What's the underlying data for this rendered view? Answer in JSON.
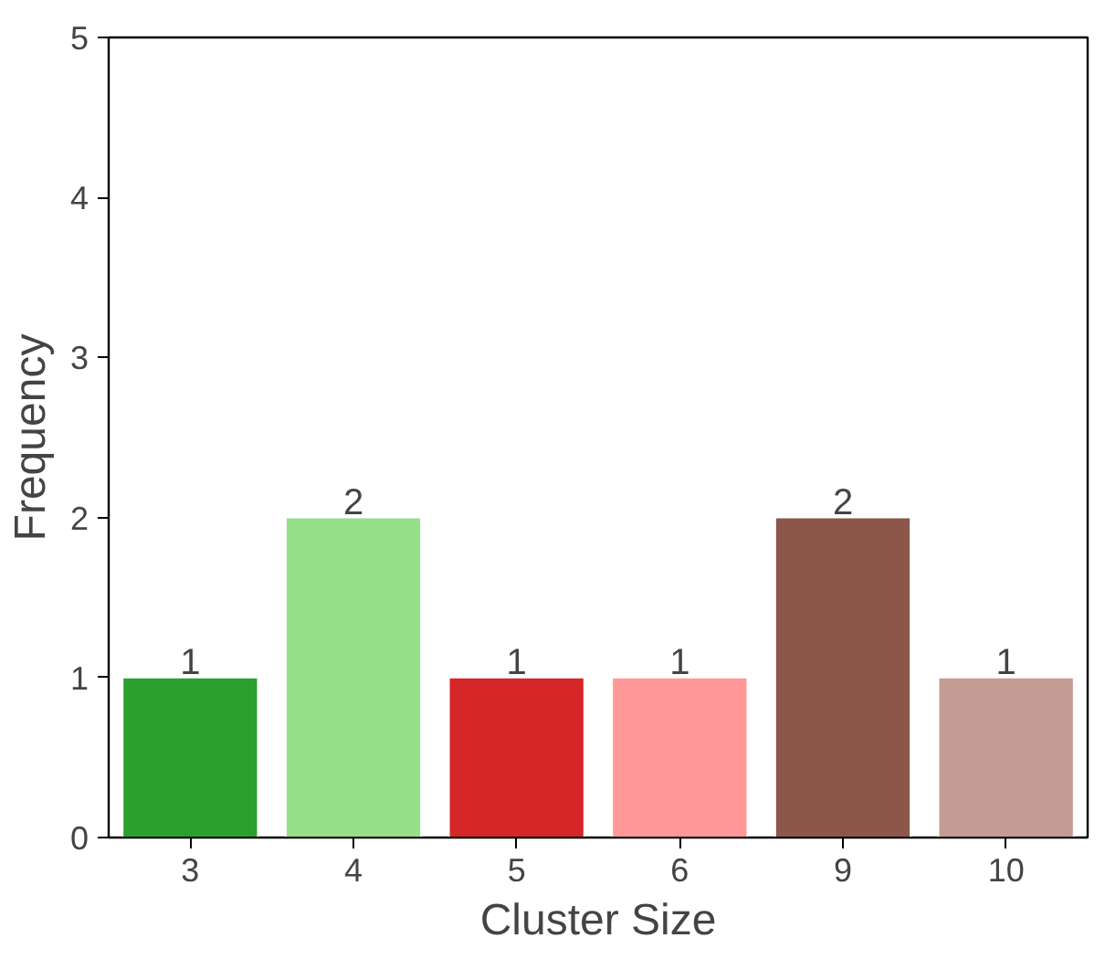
{
  "chart_data": {
    "type": "bar",
    "xlabel": "Cluster Size",
    "ylabel": "Frequency",
    "categories": [
      "3",
      "4",
      "5",
      "6",
      "9",
      "10"
    ],
    "values": [
      1,
      2,
      1,
      1,
      2,
      1
    ],
    "colors": [
      "#2ca02c",
      "#98df8a",
      "#d62728",
      "#ff9896",
      "#8c564b",
      "#c49c94"
    ],
    "ylim": [
      0,
      5
    ],
    "yticks": [
      0,
      1,
      2,
      3,
      4,
      5
    ],
    "data_labels": true,
    "grid": false
  }
}
